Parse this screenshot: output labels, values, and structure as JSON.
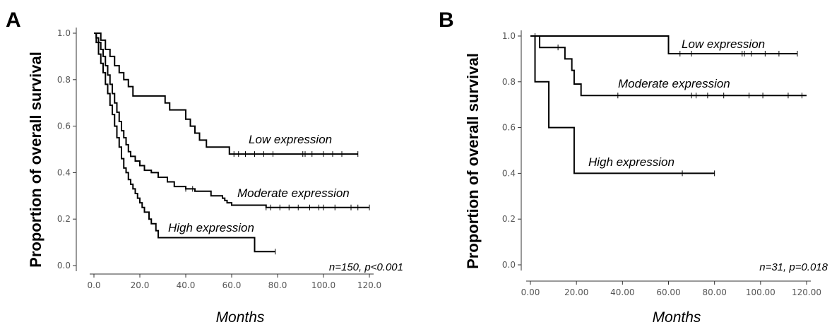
{
  "chart_data": [
    {
      "type": "line",
      "panel": "A",
      "xlabel": "Months",
      "ylabel": "Proportion of overall survival",
      "xlim": [
        0,
        120
      ],
      "ylim": [
        0,
        1.0
      ],
      "x_ticks": [
        "0.0",
        "20.0",
        "40.0",
        "60.0",
        "80.0",
        "100.0",
        "120.0"
      ],
      "y_ticks": [
        "0.0",
        "0.2",
        "0.4",
        "0.6",
        "0.8",
        "1.0"
      ],
      "annotation": "n=150, p<0.001",
      "step": true,
      "series": [
        {
          "name": "Low expression",
          "points": [
            [
              0,
              1.0
            ],
            [
              3,
              0.97
            ],
            [
              5,
              0.93
            ],
            [
              7,
              0.9
            ],
            [
              9,
              0.86
            ],
            [
              11,
              0.83
            ],
            [
              13,
              0.8
            ],
            [
              15,
              0.77
            ],
            [
              17,
              0.73
            ],
            [
              30,
              0.73
            ],
            [
              31,
              0.7
            ],
            [
              33,
              0.67
            ],
            [
              40,
              0.63
            ],
            [
              42,
              0.6
            ],
            [
              44,
              0.57
            ],
            [
              46,
              0.54
            ],
            [
              49,
              0.51
            ],
            [
              59,
              0.51
            ],
            [
              59,
              0.48
            ],
            [
              115,
              0.48
            ]
          ],
          "censored_x": [
            61,
            63,
            66,
            70,
            74,
            78,
            91,
            92,
            95,
            100,
            104,
            108,
            115
          ]
        },
        {
          "name": "Moderate expression",
          "points": [
            [
              0,
              1.0
            ],
            [
              1,
              0.98
            ],
            [
              2,
              0.96
            ],
            [
              3,
              0.93
            ],
            [
              4,
              0.9
            ],
            [
              5,
              0.86
            ],
            [
              6,
              0.82
            ],
            [
              7,
              0.78
            ],
            [
              8,
              0.74
            ],
            [
              9,
              0.7
            ],
            [
              10,
              0.66
            ],
            [
              11,
              0.62
            ],
            [
              12,
              0.58
            ],
            [
              13,
              0.55
            ],
            [
              14,
              0.52
            ],
            [
              15,
              0.49
            ],
            [
              16,
              0.47
            ],
            [
              18,
              0.45
            ],
            [
              20,
              0.43
            ],
            [
              22,
              0.41
            ],
            [
              25,
              0.4
            ],
            [
              28,
              0.38
            ],
            [
              32,
              0.36
            ],
            [
              35,
              0.34
            ],
            [
              40,
              0.33
            ],
            [
              44,
              0.32
            ],
            [
              50,
              0.32
            ],
            [
              51,
              0.3
            ],
            [
              56,
              0.29
            ],
            [
              57,
              0.28
            ],
            [
              58,
              0.27
            ],
            [
              60,
              0.26
            ],
            [
              71,
              0.26
            ],
            [
              75,
              0.25
            ],
            [
              120,
              0.25
            ]
          ],
          "censored_x": [
            40,
            43,
            75,
            77,
            81,
            85,
            89,
            94,
            98,
            100,
            105,
            112,
            115,
            120
          ]
        },
        {
          "name": "High expression",
          "points": [
            [
              0,
              1.0
            ],
            [
              1,
              0.96
            ],
            [
              2,
              0.91
            ],
            [
              3,
              0.87
            ],
            [
              4,
              0.83
            ],
            [
              5,
              0.78
            ],
            [
              6,
              0.74
            ],
            [
              7,
              0.69
            ],
            [
              8,
              0.65
            ],
            [
              9,
              0.6
            ],
            [
              10,
              0.55
            ],
            [
              11,
              0.51
            ],
            [
              12,
              0.46
            ],
            [
              13,
              0.42
            ],
            [
              14,
              0.4
            ],
            [
              15,
              0.37
            ],
            [
              16,
              0.35
            ],
            [
              17,
              0.33
            ],
            [
              18,
              0.31
            ],
            [
              19,
              0.29
            ],
            [
              20,
              0.27
            ],
            [
              21,
              0.25
            ],
            [
              22,
              0.23
            ],
            [
              24,
              0.2
            ],
            [
              25,
              0.18
            ],
            [
              27,
              0.15
            ],
            [
              28,
              0.12
            ],
            [
              70,
              0.12
            ],
            [
              70,
              0.06
            ],
            [
              79,
              0.06
            ]
          ],
          "censored_x": [
            79
          ]
        }
      ]
    },
    {
      "type": "line",
      "panel": "B",
      "xlabel": "Months",
      "ylabel": "Proportion of overall survival",
      "xlim": [
        0,
        120
      ],
      "ylim": [
        0,
        1.0
      ],
      "x_ticks": [
        "0.00",
        "20.00",
        "40.00",
        "60.00",
        "80.00",
        "100.00",
        "120.00"
      ],
      "y_ticks": [
        "0.0",
        "0.2",
        "0.4",
        "0.6",
        "0.8",
        "1.0"
      ],
      "annotation": "n=31, p=0.018",
      "step": true,
      "series": [
        {
          "name": "Low expression",
          "points": [
            [
              0,
              1.0
            ],
            [
              60,
              1.0
            ],
            [
              60,
              0.923
            ],
            [
              116,
              0.923
            ]
          ],
          "censored_x": [
            2,
            65,
            70,
            92,
            93,
            96,
            102,
            108,
            116
          ]
        },
        {
          "name": "Moderate expression",
          "points": [
            [
              0,
              1.0
            ],
            [
              4,
              1.0
            ],
            [
              4,
              0.95
            ],
            [
              15,
              0.95
            ],
            [
              15,
              0.9
            ],
            [
              18,
              0.9
            ],
            [
              18,
              0.85
            ],
            [
              19,
              0.85
            ],
            [
              19,
              0.79
            ],
            [
              22,
              0.79
            ],
            [
              22,
              0.74
            ],
            [
              120,
              0.74
            ]
          ],
          "censored_x": [
            12,
            38,
            70,
            72,
            77,
            84,
            95,
            101,
            112,
            118
          ]
        },
        {
          "name": "High expression",
          "points": [
            [
              0,
              1.0
            ],
            [
              2,
              1.0
            ],
            [
              2,
              0.8
            ],
            [
              8,
              0.8
            ],
            [
              8,
              0.6
            ],
            [
              19,
              0.6
            ],
            [
              19,
              0.4
            ],
            [
              80,
              0.4
            ]
          ],
          "censored_x": [
            66,
            80
          ]
        }
      ]
    }
  ],
  "panels": [
    {
      "letter": "A",
      "ylabel": "Proportion of overall survival",
      "xlabel": "Months",
      "annotation": "n=150, p<0.001",
      "labels": [
        "Low expression",
        "Moderate expression",
        "High expression"
      ]
    },
    {
      "letter": "B",
      "ylabel": "Proportion of overall survival",
      "xlabel": "Months",
      "annotation": "n=31, p=0.018",
      "labels": [
        "Low expression",
        "Moderate expression",
        "High expression"
      ]
    }
  ]
}
